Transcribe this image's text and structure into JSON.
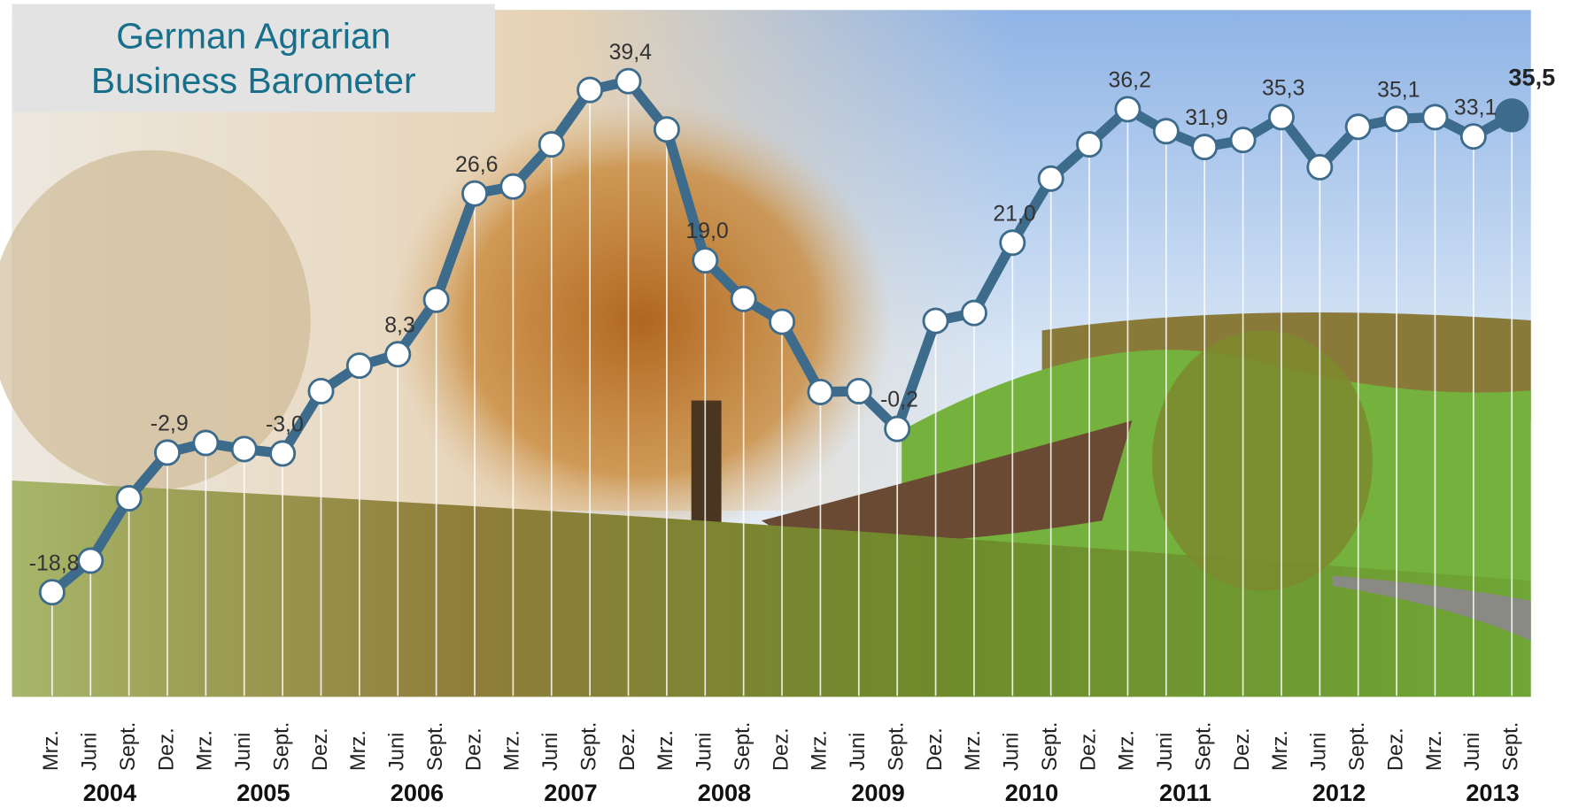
{
  "chart_data": {
    "type": "line",
    "title": [
      "German Agrarian",
      "Business Barometer"
    ],
    "categories": [
      "Mrz.",
      "Juni",
      "Sept.",
      "Dez.",
      "Mrz.",
      "Juni",
      "Sept.",
      "Dez.",
      "Mrz.",
      "Juni",
      "Sept.",
      "Dez.",
      "Mrz.",
      "Juni",
      "Sept.",
      "Dez.",
      "Mrz.",
      "Juni",
      "Sept.",
      "Dez.",
      "Mrz.",
      "Juni",
      "Sept.",
      "Dez.",
      "Mrz.",
      "Juni",
      "Sept.",
      "Dez.",
      "Mrz.",
      "Juni",
      "Sept.",
      "Dez.",
      "Mrz.",
      "Juni",
      "Sept.",
      "Dez.",
      "Mrz.",
      "Juni",
      "Sept."
    ],
    "years": [
      "2004",
      "2005",
      "2006",
      "2007",
      "2008",
      "2009",
      "2010",
      "2011",
      "2012",
      "2013"
    ],
    "values": [
      -18.8,
      -15.2,
      -8.1,
      -2.9,
      -1.8,
      -2.5,
      -3.0,
      4.1,
      7.0,
      8.3,
      14.5,
      26.6,
      27.4,
      32.2,
      38.4,
      39.4,
      33.9,
      19.0,
      14.6,
      12.0,
      4.0,
      4.1,
      -0.2,
      12.1,
      13.0,
      21.0,
      28.3,
      32.2,
      36.2,
      33.7,
      31.9,
      32.7,
      35.3,
      29.6,
      34.2,
      35.1,
      35.3,
      33.1,
      35.5
    ],
    "value_labels": [
      "-18,8",
      null,
      null,
      "-2,9",
      null,
      null,
      "-3,0",
      null,
      null,
      "8,3",
      null,
      "26,6",
      null,
      null,
      null,
      "39,4",
      null,
      "19,0",
      null,
      null,
      null,
      null,
      "-0,2",
      null,
      null,
      "21,0",
      null,
      null,
      "36,2",
      null,
      "31,9",
      null,
      "35,3",
      null,
      null,
      "35,1",
      null,
      "33,1",
      "35,5"
    ],
    "color": "#3d6b8c",
    "ylim": [
      -30.6,
      47.5
    ]
  }
}
